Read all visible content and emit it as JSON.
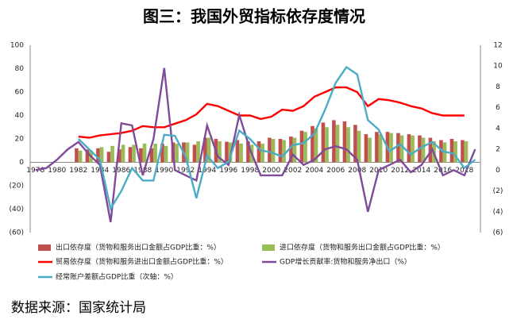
{
  "chart_data": {
    "type": "combo",
    "title": "图三：我国外贸指标依存度情况",
    "source": "数据来源：国家统计局",
    "categories": [
      "1978",
      null,
      "1980",
      null,
      "1982",
      null,
      "1984",
      null,
      "1986",
      null,
      "1988",
      null,
      "1990",
      null,
      "1992",
      null,
      "1994",
      null,
      "1996",
      null,
      "1998",
      null,
      "2000",
      null,
      "2002",
      null,
      "2004",
      null,
      "2006",
      null,
      "2008",
      null,
      "2010",
      null,
      "2012",
      null,
      "2014",
      null,
      "2016",
      null,
      "2018",
      null
    ],
    "ylim": [
      -60,
      100
    ],
    "yticks": [
      {
        "value": -60,
        "label": "(60)"
      },
      {
        "value": -40,
        "label": "(40)"
      },
      {
        "value": -20,
        "label": "(20)"
      },
      0,
      20,
      40,
      60,
      80,
      100
    ],
    "y2lim": [
      -6,
      12
    ],
    "y2ticks": [
      {
        "value": -6,
        "label": "(6)"
      },
      {
        "value": -4,
        "label": "(4)"
      },
      {
        "value": -2,
        "label": "(2)"
      },
      0,
      2,
      4,
      6,
      8,
      10,
      12
    ],
    "series": [
      {
        "name": "出口依存度（货物和服务出口金额占GDP比重：%）",
        "type": "bar",
        "color": "#c0504d",
        "values": [
          null,
          null,
          null,
          null,
          12,
          11,
          12,
          9,
          11,
          13,
          12,
          12,
          16,
          17,
          17,
          15,
          21,
          20,
          17.6,
          19,
          18,
          18,
          21,
          20,
          22,
          27,
          31,
          34,
          36,
          35,
          32,
          24,
          26,
          26,
          25,
          24,
          23,
          21,
          19,
          20,
          19,
          null
        ]
      },
      {
        "name": "进口依存度（货物和服务出口金额占GDP比重：%）",
        "type": "bar",
        "color": "#9bbb59",
        "values": [
          null,
          null,
          null,
          null,
          10,
          10,
          13,
          14,
          15,
          15,
          16,
          16,
          14,
          16,
          17,
          18,
          21,
          18,
          17,
          16,
          15,
          16,
          20,
          19,
          21,
          26,
          29,
          30,
          32,
          30,
          27,
          21,
          24,
          25,
          23,
          23,
          21,
          18,
          17,
          18,
          18,
          null
        ]
      },
      {
        "name": "贸易依存度（货物和服务进出口金额占GDP比重：%）",
        "type": "line",
        "color": "#ff0000",
        "values": [
          null,
          null,
          null,
          null,
          22,
          21,
          23,
          24,
          25,
          27,
          31,
          30,
          30,
          33,
          36,
          41,
          50,
          48,
          44,
          40,
          40,
          37,
          39,
          45,
          44,
          48,
          56,
          60,
          64,
          64,
          60,
          48,
          54,
          53,
          51,
          48,
          46,
          42,
          40,
          40,
          40,
          null
        ]
      },
      {
        "name": "GDP增长贡献率:货物和服务净出口（%）",
        "type": "line",
        "axis": "y2",
        "color": "#7f4a9a",
        "values": [
          0,
          0.2,
          1,
          2,
          2.7,
          1.5,
          0.5,
          -5,
          4.5,
          4.3,
          -0.5,
          3,
          9.8,
          0,
          -0.5,
          -1,
          4.3,
          1.3,
          0.5,
          5.3,
          2,
          -0.5,
          -0.5,
          -0.5,
          1.5,
          0.5,
          1,
          2,
          2.3,
          2,
          1,
          -4,
          0,
          0.5,
          1,
          -0.2,
          0.5,
          2,
          -0.5,
          0,
          -0.5,
          2
        ]
      },
      {
        "name": "经常账户差额占GDP比重（次轴：%）",
        "type": "line",
        "axis": "y2",
        "color": "#4bacc6",
        "values": [
          null,
          null,
          null,
          null,
          3,
          2,
          1,
          -3.7,
          -2,
          0.2,
          -1,
          -1,
          3.4,
          3.3,
          1.3,
          -2.7,
          1.4,
          0.2,
          0.8,
          3.8,
          3,
          1.9,
          1.7,
          1.3,
          2.4,
          2.6,
          3.5,
          5.8,
          8.4,
          9.9,
          9.2,
          4.8,
          3.9,
          1.8,
          2.5,
          1.5,
          2.2,
          2.7,
          1.8,
          1.6,
          0.2,
          1
        ]
      }
    ]
  }
}
